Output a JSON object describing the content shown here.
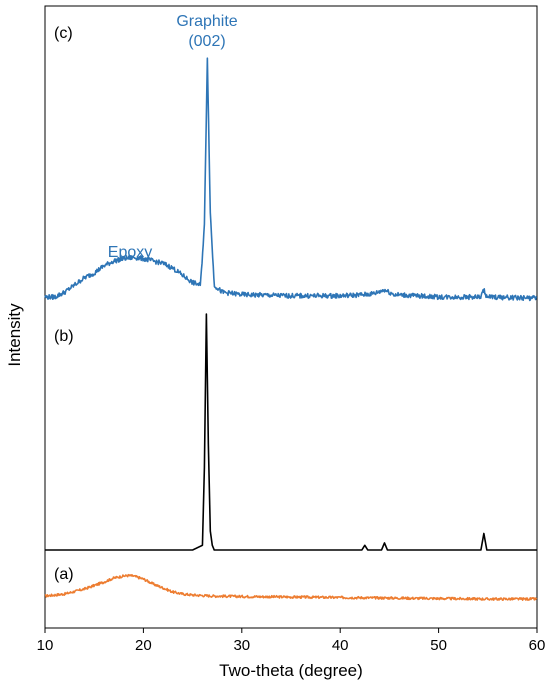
{
  "chart_data": {
    "type": "line",
    "title": "",
    "xlabel": "Two-theta (degree)",
    "ylabel": "Intensity",
    "xlim": [
      10,
      60
    ],
    "xticks": [
      10,
      20,
      30,
      40,
      50,
      60
    ],
    "y_ticks_shown": false,
    "grid": false,
    "legend": "none",
    "series": [
      {
        "label": "(a)",
        "color": "#ED7D31",
        "x": [
          10,
          12,
          14,
          16,
          17,
          18,
          18.5,
          19,
          20,
          21,
          22,
          23,
          24,
          25,
          26,
          27,
          30,
          35,
          40,
          45,
          50,
          55,
          60
        ],
        "y": [
          0.01,
          0.03,
          0.08,
          0.15,
          0.19,
          0.21,
          0.215,
          0.21,
          0.18,
          0.13,
          0.09,
          0.05,
          0.03,
          0.02,
          0.015,
          0.01,
          0.005,
          0.0,
          -0.005,
          -0.01,
          -0.015,
          -0.02,
          -0.02
        ],
        "noise": 0.012
      },
      {
        "label": "(b)",
        "color": "#000000",
        "x": [
          10,
          25,
          26.0,
          26.2,
          26.4,
          26.6,
          26.8,
          27.0,
          27.2,
          28,
          42.2,
          42.5,
          42.8,
          44.2,
          44.5,
          44.8,
          54.3,
          54.6,
          54.9,
          60
        ],
        "y": [
          0,
          0,
          0.02,
          0.35,
          1.0,
          0.45,
          0.08,
          0.02,
          0.0,
          0,
          0,
          0.02,
          0,
          0,
          0.03,
          0,
          0,
          0.07,
          0,
          0
        ],
        "noise": 0.0
      },
      {
        "label": "(c)",
        "color": "#2E75B6",
        "x": [
          10,
          11,
          12,
          13,
          14,
          15,
          16,
          17,
          18,
          19,
          20,
          21,
          22,
          23,
          24,
          25,
          25.8,
          26.2,
          26.5,
          26.8,
          27.2,
          28,
          30,
          35,
          40,
          42.5,
          43.5,
          44.5,
          45.5,
          50,
          54.3,
          54.6,
          54.9,
          60
        ],
        "y": [
          0.0,
          0.0,
          0.02,
          0.05,
          0.08,
          0.1,
          0.13,
          0.15,
          0.16,
          0.165,
          0.16,
          0.15,
          0.14,
          0.12,
          0.09,
          0.06,
          0.05,
          0.3,
          1.0,
          0.35,
          0.05,
          0.02,
          0.01,
          0.005,
          0.005,
          0.01,
          0.015,
          0.03,
          0.01,
          0.0,
          0.0,
          0.03,
          0.0,
          -0.005
        ],
        "noise": 0.01
      }
    ],
    "annotations": {
      "epoxy": "Epoxy",
      "graphite_line1": "Graphite",
      "graphite_line2": "(002)"
    }
  }
}
